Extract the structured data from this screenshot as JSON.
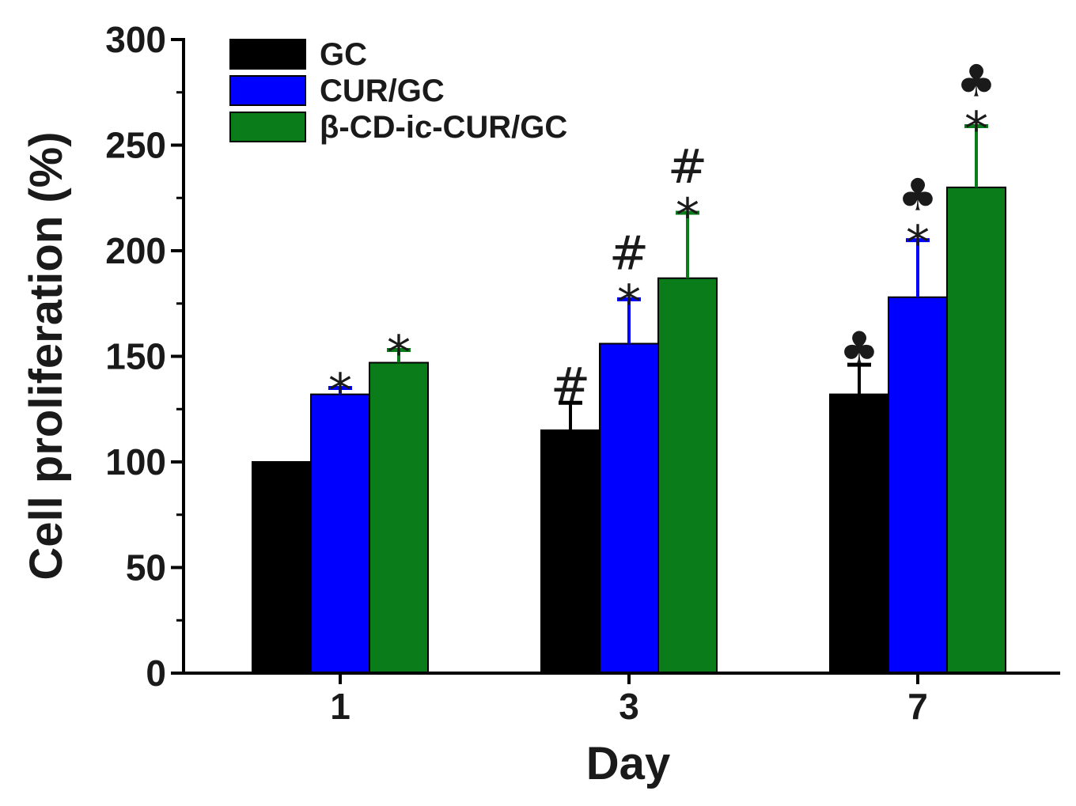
{
  "chart_data": {
    "type": "bar",
    "title": "",
    "xlabel": "Day",
    "ylabel": "Cell proliferation (%)",
    "ylim": [
      0,
      300
    ],
    "yticks": [
      "0",
      "50",
      "100",
      "150",
      "200",
      "250",
      "300"
    ],
    "categories": [
      "1",
      "3",
      "7"
    ],
    "legend_position": "top-left",
    "series": [
      {
        "name": "GC",
        "color": "#000000",
        "error_color": "#000000",
        "values": [
          100,
          115,
          132
        ],
        "errors": [
          0,
          13,
          14
        ],
        "annotations": [
          [],
          [
            "#"
          ],
          [
            "♣"
          ]
        ]
      },
      {
        "name": "CUR/GC",
        "color": "#0000ff",
        "error_color": "#0000ff",
        "values": [
          132,
          156,
          178
        ],
        "errors": [
          3,
          21,
          27
        ],
        "annotations": [
          [
            "*"
          ],
          [
            "*",
            "#"
          ],
          [
            "*",
            "♣"
          ]
        ]
      },
      {
        "name": "β-CD-ic-CUR/GC",
        "color": "#0a7d1a",
        "error_color": "#0a7d1a",
        "values": [
          147,
          187,
          230
        ],
        "errors": [
          6,
          31,
          29
        ],
        "annotations": [
          [
            "*"
          ],
          [
            "*",
            "#"
          ],
          [
            "*",
            "♣"
          ]
        ]
      }
    ]
  }
}
